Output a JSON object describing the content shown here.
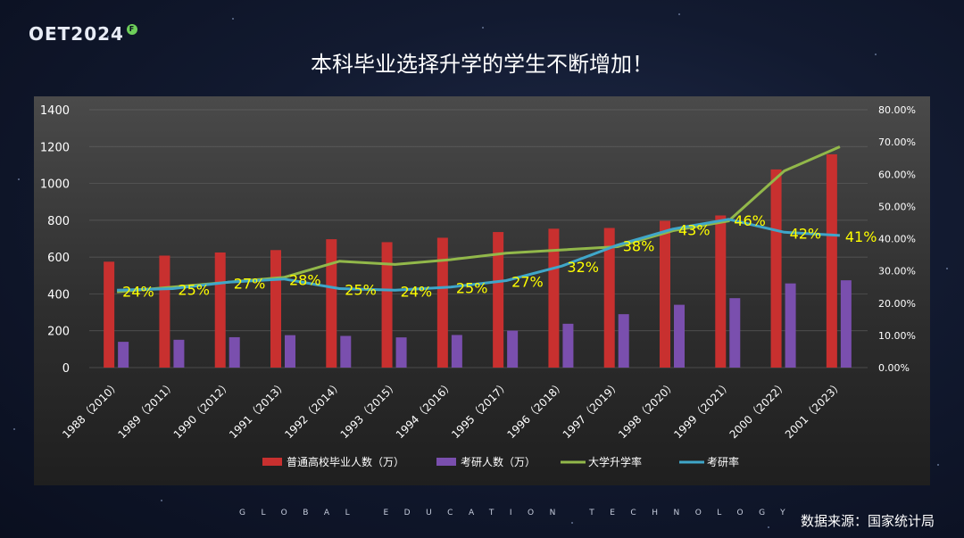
{
  "logo": {
    "text": "OET2024",
    "badge": "F"
  },
  "title": "本科毕业选择升学的学生不断增加！",
  "footer_tagline": "GLOBAL EDUCATION TECHNOLOGY",
  "source": "数据来源：国家统计局",
  "colors": {
    "graduates_bar": "#c8302f",
    "exam_bar": "#7a4fae",
    "enrollment_line": "#92b84a",
    "exam_line": "#3fa6c9",
    "data_label": "#ffff00"
  },
  "chart_data": {
    "type": "bar",
    "categories": [
      "1988（2010）",
      "1989（2011）",
      "1990（2012）",
      "1991（2013）",
      "1992（2014）",
      "1993（2015）",
      "1994（2016）",
      "1995（2017）",
      "1996（2018）",
      "1997（2019）",
      "1998（2020）",
      "1999（2021）",
      "2000（2022）",
      "2001（2023）"
    ],
    "y_left": {
      "ylim": [
        0,
        1400
      ],
      "ticks": [
        "0",
        "200",
        "400",
        "600",
        "800",
        "1000",
        "1200",
        "1400"
      ]
    },
    "y_right": {
      "ylim": [
        0,
        80
      ],
      "ticks": [
        "0.00%",
        "10.00%",
        "20.00%",
        "30.00%",
        "40.00%",
        "50.00%",
        "60.00%",
        "70.00%",
        "80.00%"
      ]
    },
    "series": [
      {
        "name": "普通高校毕业人数（万）",
        "type": "bar",
        "axis": "left",
        "values": [
          575,
          608,
          625,
          638,
          697,
          681,
          705,
          736,
          754,
          758,
          797,
          826,
          1076,
          1158
        ]
      },
      {
        "name": "考研人数（万）",
        "type": "bar",
        "axis": "left",
        "values": [
          140,
          151,
          165,
          176,
          172,
          164,
          177,
          201,
          238,
          290,
          341,
          377,
          457,
          474
        ]
      },
      {
        "name": "大学升学率",
        "type": "line",
        "axis": "right",
        "values": [
          23.5,
          25.0,
          26.5,
          28.0,
          33.0,
          32.0,
          33.5,
          35.5,
          36.5,
          37.5,
          42.5,
          45.5,
          61.0,
          68.5
        ]
      },
      {
        "name": "考研率",
        "type": "line",
        "axis": "right",
        "values": [
          24.0,
          24.5,
          26.5,
          27.5,
          24.5,
          24.0,
          25.0,
          27.0,
          31.5,
          38.0,
          43.0,
          46.0,
          42.0,
          41.0
        ],
        "labels": [
          "24%",
          "25%",
          "27%",
          "28%",
          "25%",
          "24%",
          "25%",
          "27%",
          "32%",
          "38%",
          "43%",
          "46%",
          "42%",
          "41%"
        ]
      }
    ],
    "grid": true,
    "legend": "bottom"
  }
}
